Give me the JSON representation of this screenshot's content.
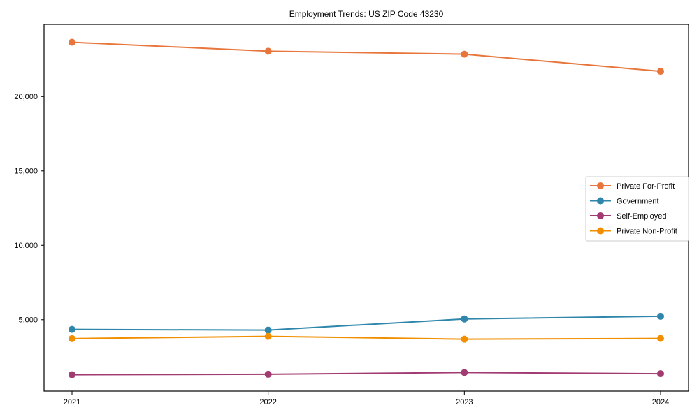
{
  "chart_data": {
    "type": "line",
    "title": "Employment Trends: US ZIP Code 43230",
    "xlabel": "",
    "ylabel": "",
    "categories": [
      "2021",
      "2022",
      "2023",
      "2024"
    ],
    "series": [
      {
        "name": "Private For-Profit",
        "color": "#E8763C",
        "values": [
          23650,
          23050,
          22850,
          21700
        ]
      },
      {
        "name": "Government",
        "color": "#2E86AB",
        "values": [
          4350,
          4300,
          5050,
          5230
        ]
      },
      {
        "name": "Self-Employed",
        "color": "#A23B72",
        "values": [
          1300,
          1330,
          1450,
          1370
        ]
      },
      {
        "name": "Private Non-Profit",
        "color": "#F18F01",
        "values": [
          3730,
          3880,
          3690,
          3740
        ]
      }
    ],
    "ylim": [
      200,
      24850
    ],
    "yticks": [
      5000,
      10000,
      15000,
      20000
    ],
    "ytick_labels": [
      "5,000",
      "10,000",
      "15,000",
      "20,000"
    ],
    "grid": false,
    "legend_position": "center right",
    "marker": "circle",
    "frame_color": "#000000",
    "legend_border_color": "#cccccc"
  }
}
